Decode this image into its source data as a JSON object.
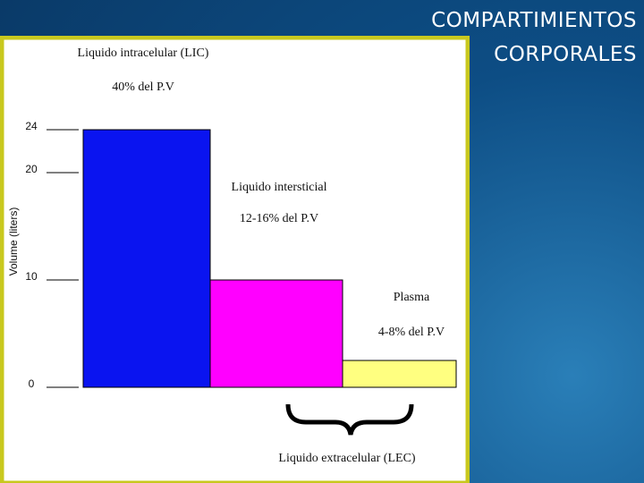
{
  "slide_title": "COMPARTIMIENTOS CORPORALES",
  "chart_data": {
    "type": "bar",
    "y_label": "Volume (liters)",
    "categories": [
      "Liquido intracelular (LIC)",
      "Liquido intersticial",
      "Plasma"
    ],
    "category_notes": [
      "40% del P.V",
      "12-16% del P.V",
      "4-8% del P.V"
    ],
    "values": [
      24,
      10,
      2.5
    ],
    "colors": [
      "#0a14f0",
      "#ff00ff",
      "#ffff80"
    ],
    "ylim": [
      0,
      24
    ],
    "yticks": [
      0,
      10,
      20,
      24
    ],
    "bracket_label": "Liquido extracelular (LEC)"
  }
}
